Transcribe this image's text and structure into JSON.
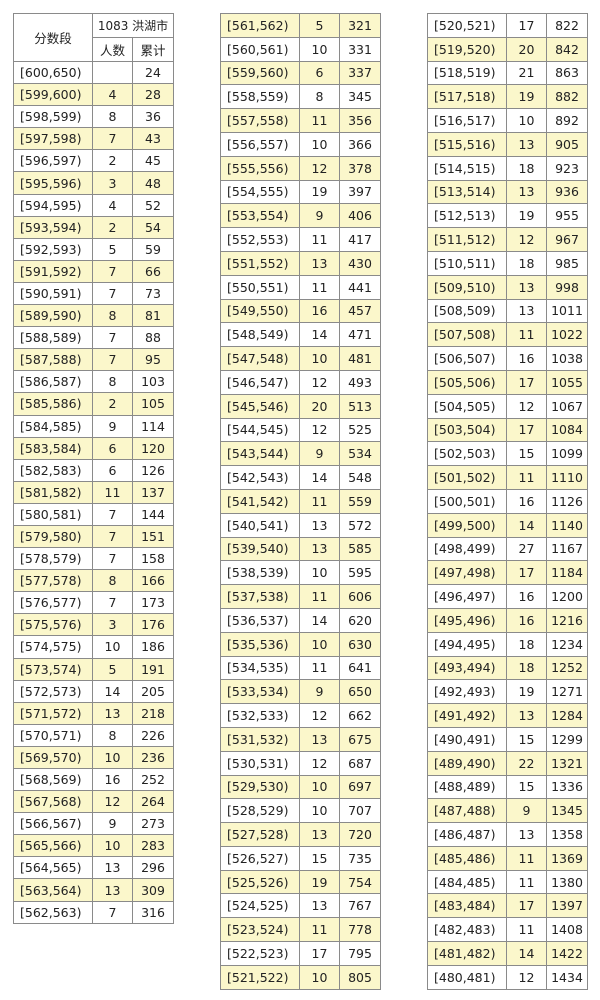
{
  "header": {
    "segment": "分数段",
    "city": "1083 洪湖市",
    "count": "人数",
    "cumulative": "累计"
  },
  "highlight_color": "#fbf7cb",
  "tables": [
    [
      [
        "[600,650)",
        "",
        "24"
      ],
      [
        "[599,600)",
        "4",
        "28"
      ],
      [
        "[598,599)",
        "8",
        "36"
      ],
      [
        "[597,598)",
        "7",
        "43"
      ],
      [
        "[596,597)",
        "2",
        "45"
      ],
      [
        "[595,596)",
        "3",
        "48"
      ],
      [
        "[594,595)",
        "4",
        "52"
      ],
      [
        "[593,594)",
        "2",
        "54"
      ],
      [
        "[592,593)",
        "5",
        "59"
      ],
      [
        "[591,592)",
        "7",
        "66"
      ],
      [
        "[590,591)",
        "7",
        "73"
      ],
      [
        "[589,590)",
        "8",
        "81"
      ],
      [
        "[588,589)",
        "7",
        "88"
      ],
      [
        "[587,588)",
        "7",
        "95"
      ],
      [
        "[586,587)",
        "8",
        "103"
      ],
      [
        "[585,586)",
        "2",
        "105"
      ],
      [
        "[584,585)",
        "9",
        "114"
      ],
      [
        "[583,584)",
        "6",
        "120"
      ],
      [
        "[582,583)",
        "6",
        "126"
      ],
      [
        "[581,582)",
        "11",
        "137"
      ],
      [
        "[580,581)",
        "7",
        "144"
      ],
      [
        "[579,580)",
        "7",
        "151"
      ],
      [
        "[578,579)",
        "7",
        "158"
      ],
      [
        "[577,578)",
        "8",
        "166"
      ],
      [
        "[576,577)",
        "7",
        "173"
      ],
      [
        "[575,576)",
        "3",
        "176"
      ],
      [
        "[574,575)",
        "10",
        "186"
      ],
      [
        "[573,574)",
        "5",
        "191"
      ],
      [
        "[572,573)",
        "14",
        "205"
      ],
      [
        "[571,572)",
        "13",
        "218"
      ],
      [
        "[570,571)",
        "8",
        "226"
      ],
      [
        "[569,570)",
        "10",
        "236"
      ],
      [
        "[568,569)",
        "16",
        "252"
      ],
      [
        "[567,568)",
        "12",
        "264"
      ],
      [
        "[566,567)",
        "9",
        "273"
      ],
      [
        "[565,566)",
        "10",
        "283"
      ],
      [
        "[564,565)",
        "13",
        "296"
      ],
      [
        "[563,564)",
        "13",
        "309"
      ],
      [
        "[562,563)",
        "7",
        "316"
      ]
    ],
    [
      [
        "[561,562)",
        "5",
        "321"
      ],
      [
        "[560,561)",
        "10",
        "331"
      ],
      [
        "[559,560)",
        "6",
        "337"
      ],
      [
        "[558,559)",
        "8",
        "345"
      ],
      [
        "[557,558)",
        "11",
        "356"
      ],
      [
        "[556,557)",
        "10",
        "366"
      ],
      [
        "[555,556)",
        "12",
        "378"
      ],
      [
        "[554,555)",
        "19",
        "397"
      ],
      [
        "[553,554)",
        "9",
        "406"
      ],
      [
        "[552,553)",
        "11",
        "417"
      ],
      [
        "[551,552)",
        "13",
        "430"
      ],
      [
        "[550,551)",
        "11",
        "441"
      ],
      [
        "[549,550)",
        "16",
        "457"
      ],
      [
        "[548,549)",
        "14",
        "471"
      ],
      [
        "[547,548)",
        "10",
        "481"
      ],
      [
        "[546,547)",
        "12",
        "493"
      ],
      [
        "[545,546)",
        "20",
        "513"
      ],
      [
        "[544,545)",
        "12",
        "525"
      ],
      [
        "[543,544)",
        "9",
        "534"
      ],
      [
        "[542,543)",
        "14",
        "548"
      ],
      [
        "[541,542)",
        "11",
        "559"
      ],
      [
        "[540,541)",
        "13",
        "572"
      ],
      [
        "[539,540)",
        "13",
        "585"
      ],
      [
        "[538,539)",
        "10",
        "595"
      ],
      [
        "[537,538)",
        "11",
        "606"
      ],
      [
        "[536,537)",
        "14",
        "620"
      ],
      [
        "[535,536)",
        "10",
        "630"
      ],
      [
        "[534,535)",
        "11",
        "641"
      ],
      [
        "[533,534)",
        "9",
        "650"
      ],
      [
        "[532,533)",
        "12",
        "662"
      ],
      [
        "[531,532)",
        "13",
        "675"
      ],
      [
        "[530,531)",
        "12",
        "687"
      ],
      [
        "[529,530)",
        "10",
        "697"
      ],
      [
        "[528,529)",
        "10",
        "707"
      ],
      [
        "[527,528)",
        "13",
        "720"
      ],
      [
        "[526,527)",
        "15",
        "735"
      ],
      [
        "[525,526)",
        "19",
        "754"
      ],
      [
        "[524,525)",
        "13",
        "767"
      ],
      [
        "[523,524)",
        "11",
        "778"
      ],
      [
        "[522,523)",
        "17",
        "795"
      ],
      [
        "[521,522)",
        "10",
        "805"
      ]
    ],
    [
      [
        "[520,521)",
        "17",
        "822"
      ],
      [
        "[519,520)",
        "20",
        "842"
      ],
      [
        "[518,519)",
        "21",
        "863"
      ],
      [
        "[517,518)",
        "19",
        "882"
      ],
      [
        "[516,517)",
        "10",
        "892"
      ],
      [
        "[515,516)",
        "13",
        "905"
      ],
      [
        "[514,515)",
        "18",
        "923"
      ],
      [
        "[513,514)",
        "13",
        "936"
      ],
      [
        "[512,513)",
        "19",
        "955"
      ],
      [
        "[511,512)",
        "12",
        "967"
      ],
      [
        "[510,511)",
        "18",
        "985"
      ],
      [
        "[509,510)",
        "13",
        "998"
      ],
      [
        "[508,509)",
        "13",
        "1011"
      ],
      [
        "[507,508)",
        "11",
        "1022"
      ],
      [
        "[506,507)",
        "16",
        "1038"
      ],
      [
        "[505,506)",
        "17",
        "1055"
      ],
      [
        "[504,505)",
        "12",
        "1067"
      ],
      [
        "[503,504)",
        "17",
        "1084"
      ],
      [
        "[502,503)",
        "15",
        "1099"
      ],
      [
        "[501,502)",
        "11",
        "1110"
      ],
      [
        "[500,501)",
        "16",
        "1126"
      ],
      [
        "[499,500)",
        "14",
        "1140"
      ],
      [
        "[498,499)",
        "27",
        "1167"
      ],
      [
        "[497,498)",
        "17",
        "1184"
      ],
      [
        "[496,497)",
        "16",
        "1200"
      ],
      [
        "[495,496)",
        "16",
        "1216"
      ],
      [
        "[494,495)",
        "18",
        "1234"
      ],
      [
        "[493,494)",
        "18",
        "1252"
      ],
      [
        "[492,493)",
        "19",
        "1271"
      ],
      [
        "[491,492)",
        "13",
        "1284"
      ],
      [
        "[490,491)",
        "15",
        "1299"
      ],
      [
        "[489,490)",
        "22",
        "1321"
      ],
      [
        "[488,489)",
        "15",
        "1336"
      ],
      [
        "[487,488)",
        "9",
        "1345"
      ],
      [
        "[486,487)",
        "13",
        "1358"
      ],
      [
        "[485,486)",
        "11",
        "1369"
      ],
      [
        "[484,485)",
        "11",
        "1380"
      ],
      [
        "[483,484)",
        "17",
        "1397"
      ],
      [
        "[482,483)",
        "11",
        "1408"
      ],
      [
        "[481,482)",
        "14",
        "1422"
      ],
      [
        "[480,481)",
        "12",
        "1434"
      ]
    ]
  ]
}
